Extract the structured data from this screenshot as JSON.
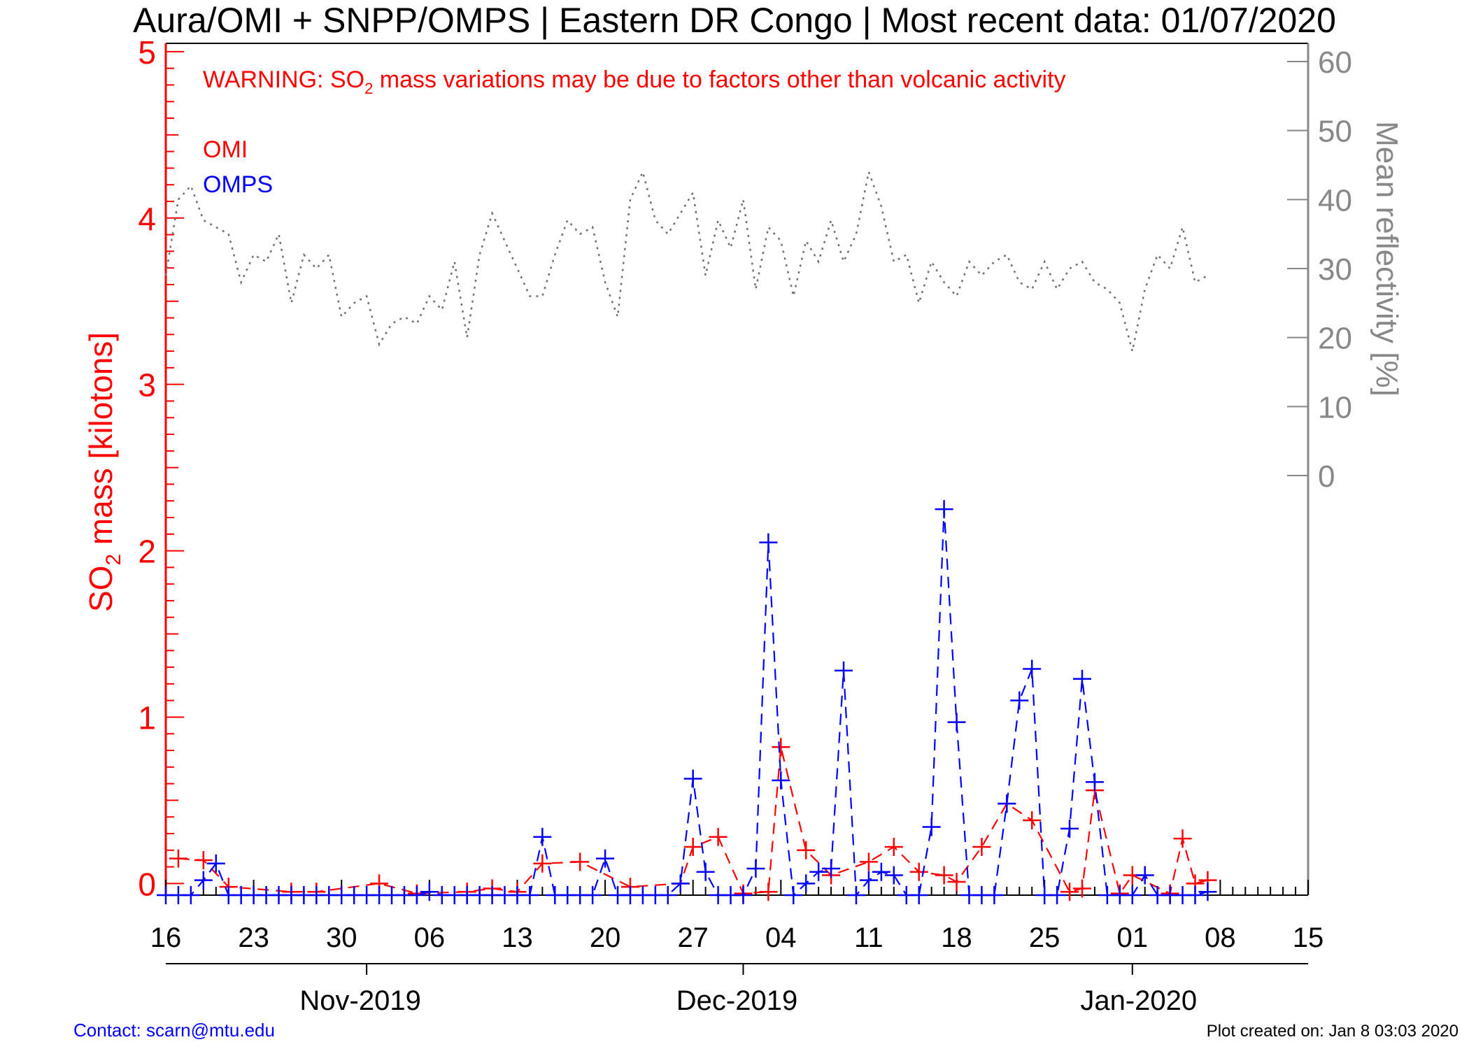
{
  "title": "Aura/OMI + SNPP/OMPS | Eastern DR Congo | Most recent data: 01/07/2020",
  "warning": {
    "prefix": "WARNING: SO",
    "sub": "2",
    "suffix": " mass variations may be due to factors other than volcanic activity"
  },
  "legend": [
    {
      "name": "OMI",
      "color": "#ff0000"
    },
    {
      "name": "OMPS",
      "color": "#0000ff"
    }
  ],
  "ylabel_left": {
    "prefix": "SO",
    "sub": "2",
    "suffix": " mass [kilotons]"
  },
  "ylabel_right": "Mean reflectivity [%]",
  "footer": {
    "contact": "Contact: scarn@mtu.edu",
    "created": "Plot created on: Jan  8 03:03 2020"
  },
  "colors": {
    "omi": "#ff0000",
    "omps": "#0000ff",
    "reflectivity": "#707070",
    "right_axis": "#888888",
    "left_axis": "#ff0000"
  },
  "chart_data": {
    "type": "line",
    "x_unit": "days since 2019-10-16",
    "xlim": [
      0,
      91
    ],
    "x_ticks": [
      {
        "label": "16",
        "day": 0
      },
      {
        "label": "23",
        "day": 7
      },
      {
        "label": "30",
        "day": 14
      },
      {
        "label": "06",
        "day": 21
      },
      {
        "label": "13",
        "day": 28
      },
      {
        "label": "20",
        "day": 35
      },
      {
        "label": "27",
        "day": 42
      },
      {
        "label": "04",
        "day": 49
      },
      {
        "label": "11",
        "day": 56
      },
      {
        "label": "18",
        "day": 63
      },
      {
        "label": "25",
        "day": 70
      },
      {
        "label": "01",
        "day": 77
      },
      {
        "label": "08",
        "day": 84
      },
      {
        "label": "15",
        "day": 91
      }
    ],
    "months": [
      {
        "label": "Nov-2019",
        "day": 16,
        "center": 15.5
      },
      {
        "label": "Dec-2019",
        "day": 46,
        "center": 45.5
      },
      {
        "label": "Jan-2020",
        "day": 77,
        "center": 77.5
      }
    ],
    "ylim": [
      -0.07,
      5.05
    ],
    "y_ticks": [
      "0",
      "1",
      "2",
      "3",
      "4",
      "5"
    ],
    "y2lim": [
      0,
      60
    ],
    "y2_ticks": [
      "0",
      "10",
      "20",
      "30",
      "40",
      "50",
      "60"
    ],
    "series": [
      {
        "name": "OMI",
        "style": "dashed",
        "marker": "plus",
        "points": [
          [
            1,
            0.15
          ],
          [
            3,
            0.14
          ],
          [
            5,
            -0.02
          ],
          [
            10,
            -0.05
          ],
          [
            12,
            -0.05
          ],
          [
            17,
            0.0
          ],
          [
            20,
            -0.06
          ],
          [
            24,
            -0.05
          ],
          [
            26,
            -0.03
          ],
          [
            28,
            -0.05
          ],
          [
            30,
            0.12
          ],
          [
            33,
            0.13
          ],
          [
            37,
            -0.02
          ],
          [
            41,
            0.0
          ],
          [
            42,
            0.22
          ],
          [
            44,
            0.28
          ],
          [
            46,
            -0.06
          ],
          [
            48,
            -0.05
          ],
          [
            49,
            0.82
          ],
          [
            51,
            0.2
          ],
          [
            53,
            0.05
          ],
          [
            56,
            0.13
          ],
          [
            58,
            0.22
          ],
          [
            60,
            0.07
          ],
          [
            62,
            0.05
          ],
          [
            63,
            0.01
          ],
          [
            65,
            0.22
          ],
          [
            67,
            0.48
          ],
          [
            69,
            0.38
          ],
          [
            72,
            -0.05
          ],
          [
            73,
            -0.03
          ],
          [
            74,
            0.56
          ],
          [
            76,
            -0.06
          ],
          [
            77,
            0.05
          ],
          [
            80,
            -0.06
          ],
          [
            81,
            0.27
          ],
          [
            82,
            0.0
          ],
          [
            83,
            0.02
          ]
        ]
      },
      {
        "name": "OMPS",
        "style": "dashed",
        "marker": "plus",
        "points": [
          [
            0,
            -0.07
          ],
          [
            1,
            -0.07
          ],
          [
            2,
            -0.07
          ],
          [
            3,
            0.02
          ],
          [
            4,
            0.12
          ],
          [
            5,
            -0.07
          ],
          [
            6,
            -0.07
          ],
          [
            7,
            -0.07
          ],
          [
            8,
            -0.07
          ],
          [
            9,
            -0.07
          ],
          [
            10,
            -0.07
          ],
          [
            11,
            -0.07
          ],
          [
            12,
            -0.07
          ],
          [
            13,
            -0.07
          ],
          [
            14,
            -0.07
          ],
          [
            15,
            -0.07
          ],
          [
            16,
            -0.07
          ],
          [
            17,
            -0.07
          ],
          [
            18,
            -0.07
          ],
          [
            19,
            -0.07
          ],
          [
            20,
            -0.07
          ],
          [
            21,
            -0.05
          ],
          [
            22,
            -0.07
          ],
          [
            23,
            -0.07
          ],
          [
            24,
            -0.07
          ],
          [
            25,
            -0.07
          ],
          [
            26,
            -0.07
          ],
          [
            27,
            -0.07
          ],
          [
            28,
            -0.07
          ],
          [
            29,
            -0.07
          ],
          [
            30,
            0.28
          ],
          [
            31,
            -0.07
          ],
          [
            32,
            -0.07
          ],
          [
            33,
            -0.07
          ],
          [
            34,
            -0.07
          ],
          [
            35,
            0.15
          ],
          [
            36,
            -0.07
          ],
          [
            37,
            -0.07
          ],
          [
            38,
            -0.07
          ],
          [
            39,
            -0.07
          ],
          [
            40,
            -0.07
          ],
          [
            41,
            0.0
          ],
          [
            42,
            0.63
          ],
          [
            43,
            0.07
          ],
          [
            44,
            -0.07
          ],
          [
            45,
            -0.07
          ],
          [
            46,
            -0.07
          ],
          [
            47,
            0.09
          ],
          [
            48,
            2.05
          ],
          [
            49,
            0.62
          ],
          [
            50,
            -0.07
          ],
          [
            51,
            0.0
          ],
          [
            52,
            0.07
          ],
          [
            53,
            0.09
          ],
          [
            54,
            1.28
          ],
          [
            55,
            -0.07
          ],
          [
            56,
            0.02
          ],
          [
            57,
            0.07
          ],
          [
            58,
            0.05
          ],
          [
            59,
            -0.07
          ],
          [
            60,
            -0.07
          ],
          [
            61,
            0.34
          ],
          [
            62,
            2.25
          ],
          [
            63,
            0.97
          ],
          [
            64,
            -0.07
          ],
          [
            65,
            -0.07
          ],
          [
            66,
            -0.07
          ],
          [
            67,
            0.48
          ],
          [
            68,
            1.1
          ],
          [
            69,
            1.29
          ],
          [
            70,
            -0.07
          ],
          [
            71,
            -0.07
          ],
          [
            72,
            0.33
          ],
          [
            73,
            1.23
          ],
          [
            74,
            0.61
          ],
          [
            75,
            -0.07
          ],
          [
            76,
            -0.07
          ],
          [
            77,
            -0.07
          ],
          [
            78,
            0.05
          ],
          [
            79,
            -0.07
          ],
          [
            80,
            -0.07
          ],
          [
            81,
            -0.07
          ],
          [
            82,
            -0.07
          ],
          [
            83,
            -0.05
          ]
        ]
      },
      {
        "name": "Mean reflectivity",
        "style": "dotted",
        "axis": "right",
        "points": [
          [
            0,
            29
          ],
          [
            1,
            40
          ],
          [
            2,
            42
          ],
          [
            3,
            37
          ],
          [
            4,
            36
          ],
          [
            5,
            35
          ],
          [
            6,
            28
          ],
          [
            7,
            32
          ],
          [
            8,
            31
          ],
          [
            9,
            35
          ],
          [
            10,
            25
          ],
          [
            11,
            32
          ],
          [
            12,
            30
          ],
          [
            13,
            32
          ],
          [
            14,
            23
          ],
          [
            15,
            25
          ],
          [
            16,
            26
          ],
          [
            17,
            19
          ],
          [
            18,
            22
          ],
          [
            19,
            23
          ],
          [
            20,
            22
          ],
          [
            21,
            26
          ],
          [
            22,
            24
          ],
          [
            23,
            31
          ],
          [
            24,
            20
          ],
          [
            25,
            32
          ],
          [
            26,
            38
          ],
          [
            27,
            34
          ],
          [
            28,
            30
          ],
          [
            29,
            26
          ],
          [
            30,
            26
          ],
          [
            31,
            32
          ],
          [
            32,
            37
          ],
          [
            33,
            35
          ],
          [
            34,
            36
          ],
          [
            35,
            28
          ],
          [
            36,
            23
          ],
          [
            37,
            40
          ],
          [
            38,
            44
          ],
          [
            39,
            37
          ],
          [
            40,
            35
          ],
          [
            41,
            38
          ],
          [
            42,
            41
          ],
          [
            43,
            29
          ],
          [
            44,
            37
          ],
          [
            45,
            33
          ],
          [
            46,
            40
          ],
          [
            47,
            27
          ],
          [
            48,
            36
          ],
          [
            49,
            34
          ],
          [
            50,
            26
          ],
          [
            51,
            34
          ],
          [
            52,
            31
          ],
          [
            53,
            37
          ],
          [
            54,
            31
          ],
          [
            55,
            35
          ],
          [
            56,
            44
          ],
          [
            57,
            39
          ],
          [
            58,
            31
          ],
          [
            59,
            32
          ],
          [
            60,
            25
          ],
          [
            61,
            31
          ],
          [
            62,
            28
          ],
          [
            63,
            26
          ],
          [
            64,
            31
          ],
          [
            65,
            29
          ],
          [
            66,
            31
          ],
          [
            67,
            32
          ],
          [
            68,
            28
          ],
          [
            69,
            27
          ],
          [
            70,
            31
          ],
          [
            71,
            27
          ],
          [
            72,
            30
          ],
          [
            73,
            31
          ],
          [
            74,
            28
          ],
          [
            75,
            27
          ],
          [
            76,
            25
          ],
          [
            77,
            18
          ],
          [
            78,
            27
          ],
          [
            79,
            32
          ],
          [
            80,
            30
          ],
          [
            81,
            36
          ],
          [
            82,
            28
          ],
          [
            83,
            29
          ]
        ]
      }
    ]
  }
}
